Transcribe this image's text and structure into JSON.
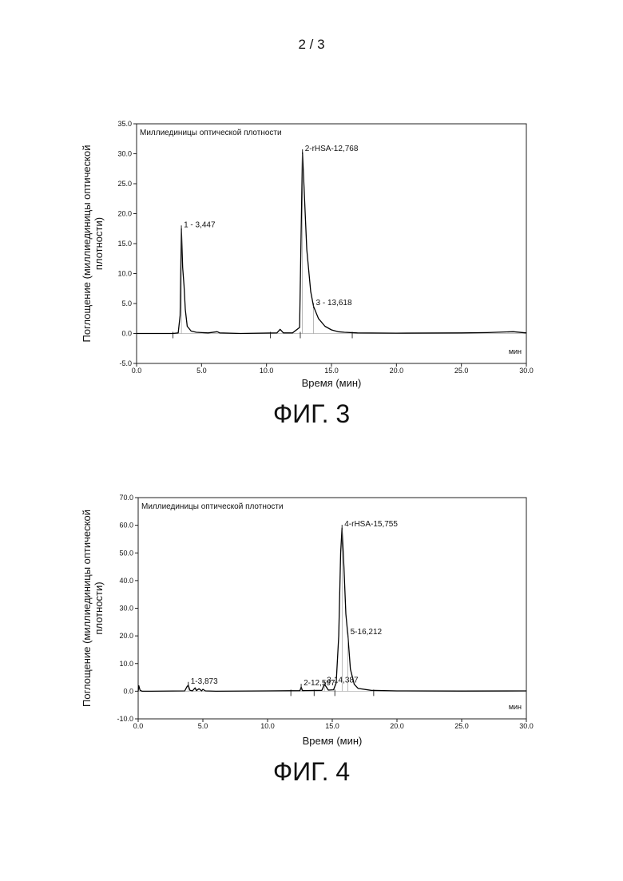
{
  "page": {
    "number": "2 / 3"
  },
  "chart_data": [
    {
      "type": "line",
      "figure_label": "ФИГ. 3",
      "title": "Миллиединицы оптической плотности",
      "xlabel": "Время (мин)",
      "ylabel": "Поглощение (миллиединицы оптической плотности)",
      "x_unit_label": "мин",
      "xlim": [
        0,
        30
      ],
      "ylim": [
        -5,
        35
      ],
      "xticks": [
        "0.0",
        "5.0",
        "10.0",
        "15.0",
        "20.0",
        "25.0",
        "30.0"
      ],
      "yticks": [
        "-5.0",
        "0.0",
        "5.0",
        "10.0",
        "15.0",
        "20.0",
        "25.0",
        "30.0",
        "35.0"
      ],
      "series": [
        {
          "x": [
            0,
            2.8,
            3.2,
            3.35,
            3.45,
            3.55,
            3.65,
            3.75,
            3.9,
            4.2,
            4.6,
            5.5,
            6.2,
            6.3,
            6.4,
            8,
            10.8,
            11.05,
            11.3,
            12,
            12.55,
            12.65,
            12.77,
            12.9,
            13.1,
            13.4,
            13.62,
            14,
            14.5,
            15,
            15.5,
            16,
            17,
            20,
            25,
            27,
            29,
            30
          ],
          "y": [
            0,
            0,
            0.1,
            3,
            17.5,
            11,
            8,
            4,
            1.2,
            0.4,
            0.2,
            0.1,
            0.3,
            0.2,
            0.1,
            0,
            0.1,
            0.7,
            0.1,
            0.1,
            1,
            15,
            30.2,
            24,
            14,
            7,
            4.5,
            2.5,
            1.2,
            0.6,
            0.3,
            0.2,
            0.1,
            0.05,
            0.1,
            0.15,
            0.3,
            0.1
          ]
        }
      ],
      "peaks": [
        {
          "label": "1 - 3,447",
          "x": 3.447,
          "y": 17.5
        },
        {
          "label": "2-rHSA-12,768",
          "x": 12.768,
          "y": 30.2
        },
        {
          "label": "3 - 13,618",
          "x": 13.618,
          "y": 4.5
        }
      ],
      "integration_marks": [
        2.8,
        10.3,
        12.6,
        16.6
      ]
    },
    {
      "type": "line",
      "figure_label": "ФИГ. 4",
      "title": "Миллиединицы оптической плотности",
      "xlabel": "Время (мин)",
      "ylabel": "Поглощение (миллиединицы оптической плотности)",
      "x_unit_label": "мин",
      "xlim": [
        0,
        30
      ],
      "ylim": [
        -10,
        70
      ],
      "xticks": [
        "0.0",
        "5.0",
        "10.0",
        "15.0",
        "20.0",
        "25.0",
        "30.0"
      ],
      "yticks": [
        "-10.0",
        "0.0",
        "10.0",
        "20.0",
        "30.0",
        "40.0",
        "50.0",
        "60.0",
        "70.0"
      ],
      "series": [
        {
          "x": [
            0,
            0.05,
            0.15,
            0.3,
            1,
            3.6,
            3.75,
            3.87,
            4.0,
            4.2,
            4.4,
            4.5,
            4.7,
            4.9,
            5.0,
            5.2,
            6,
            10,
            12.5,
            12.6,
            12.7,
            14.2,
            14.39,
            14.5,
            14.7,
            15.1,
            15.3,
            15.5,
            15.65,
            15.755,
            15.9,
            16.05,
            16.21,
            16.4,
            16.7,
            17,
            18,
            20,
            25,
            30
          ],
          "y": [
            0,
            2,
            0.3,
            0,
            0,
            0.1,
            1.5,
            2.2,
            0.3,
            0.1,
            1.2,
            0.2,
            0.9,
            0.1,
            0.7,
            0.1,
            0,
            0.1,
            0.2,
            1.5,
            0.2,
            0.3,
            2.5,
            1.8,
            0.4,
            0.5,
            3,
            20,
            50,
            59,
            45,
            28,
            20,
            8,
            2.5,
            1,
            0.3,
            0.1,
            0.05,
            0.1
          ]
        }
      ],
      "peaks": [
        {
          "label": "1-3,873",
          "x": 3.873,
          "y": 2.2
        },
        {
          "label": "2-12,597",
          "x": 12.597,
          "y": 1.5
        },
        {
          "label": "3-14,387",
          "x": 14.387,
          "y": 2.5
        },
        {
          "label": "4-rHSA-15,755",
          "x": 15.755,
          "y": 59
        },
        {
          "label": "5-16,212",
          "x": 16.212,
          "y": 20
        }
      ],
      "integration_marks": [
        11.8,
        13.6,
        15.2,
        18.2
      ]
    }
  ]
}
